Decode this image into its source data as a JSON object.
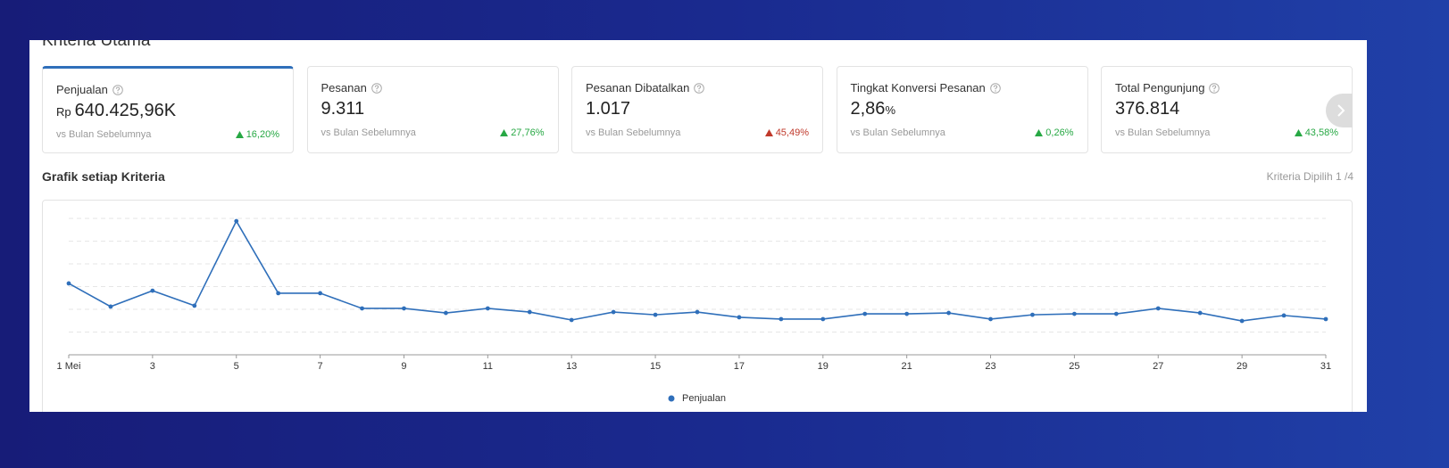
{
  "header": {
    "title": "Kriteria Utama"
  },
  "cards": [
    {
      "label": "Penjualan",
      "prefix": "Rp",
      "value": "640.425,96K",
      "compare": "vs Bulan Sebelumnya",
      "change": "16,20%",
      "trend_color": "#27a844"
    },
    {
      "label": "Pesanan",
      "value": "9.311",
      "compare": "vs Bulan Sebelumnya",
      "change": "27,76%",
      "trend_color": "#27a844"
    },
    {
      "label": "Pesanan Dibatalkan",
      "value": "1.017",
      "compare": "vs Bulan Sebelumnya",
      "change": "45,49%",
      "trend_color": "#c0392b"
    },
    {
      "label": "Tingkat Konversi Pesanan",
      "value": "2,86",
      "unit": "%",
      "compare": "vs Bulan Sebelumnya",
      "change": "0,26%",
      "trend_color": "#27a844"
    },
    {
      "label": "Total Pengunjung",
      "value": "376.814",
      "compare": "vs Bulan Sebelumnya",
      "change": "43,58%",
      "trend_color": "#27a844"
    }
  ],
  "section_title": "Grafik setiap Kriteria",
  "selected": "Kriteria Dipilih 1 /4",
  "chart_data": {
    "type": "line",
    "categories": [
      "1 Mei",
      null,
      "3",
      null,
      "5",
      null,
      "7",
      null,
      "9",
      null,
      "11",
      null,
      "13",
      null,
      "15",
      null,
      "17",
      null,
      "19",
      null,
      "21",
      null,
      "23",
      null,
      "25",
      null,
      "27",
      null,
      "29",
      null,
      "31"
    ],
    "series": [
      {
        "name": "Penjualan",
        "color": "#2f6fba",
        "values": [
          3.14,
          2.12,
          2.82,
          2.16,
          5.88,
          2.71,
          2.71,
          2.04,
          2.04,
          1.84,
          2.04,
          1.88,
          1.53,
          1.88,
          1.76,
          1.88,
          1.65,
          1.57,
          1.57,
          1.8,
          1.8,
          1.84,
          1.57,
          1.76,
          1.8,
          1.8,
          2.04,
          1.84,
          1.49,
          1.73,
          1.57
        ]
      }
    ],
    "ylim": [
      0,
      6
    ],
    "yticks": [
      0,
      1,
      2,
      3,
      4,
      5,
      6
    ],
    "grid": true
  }
}
